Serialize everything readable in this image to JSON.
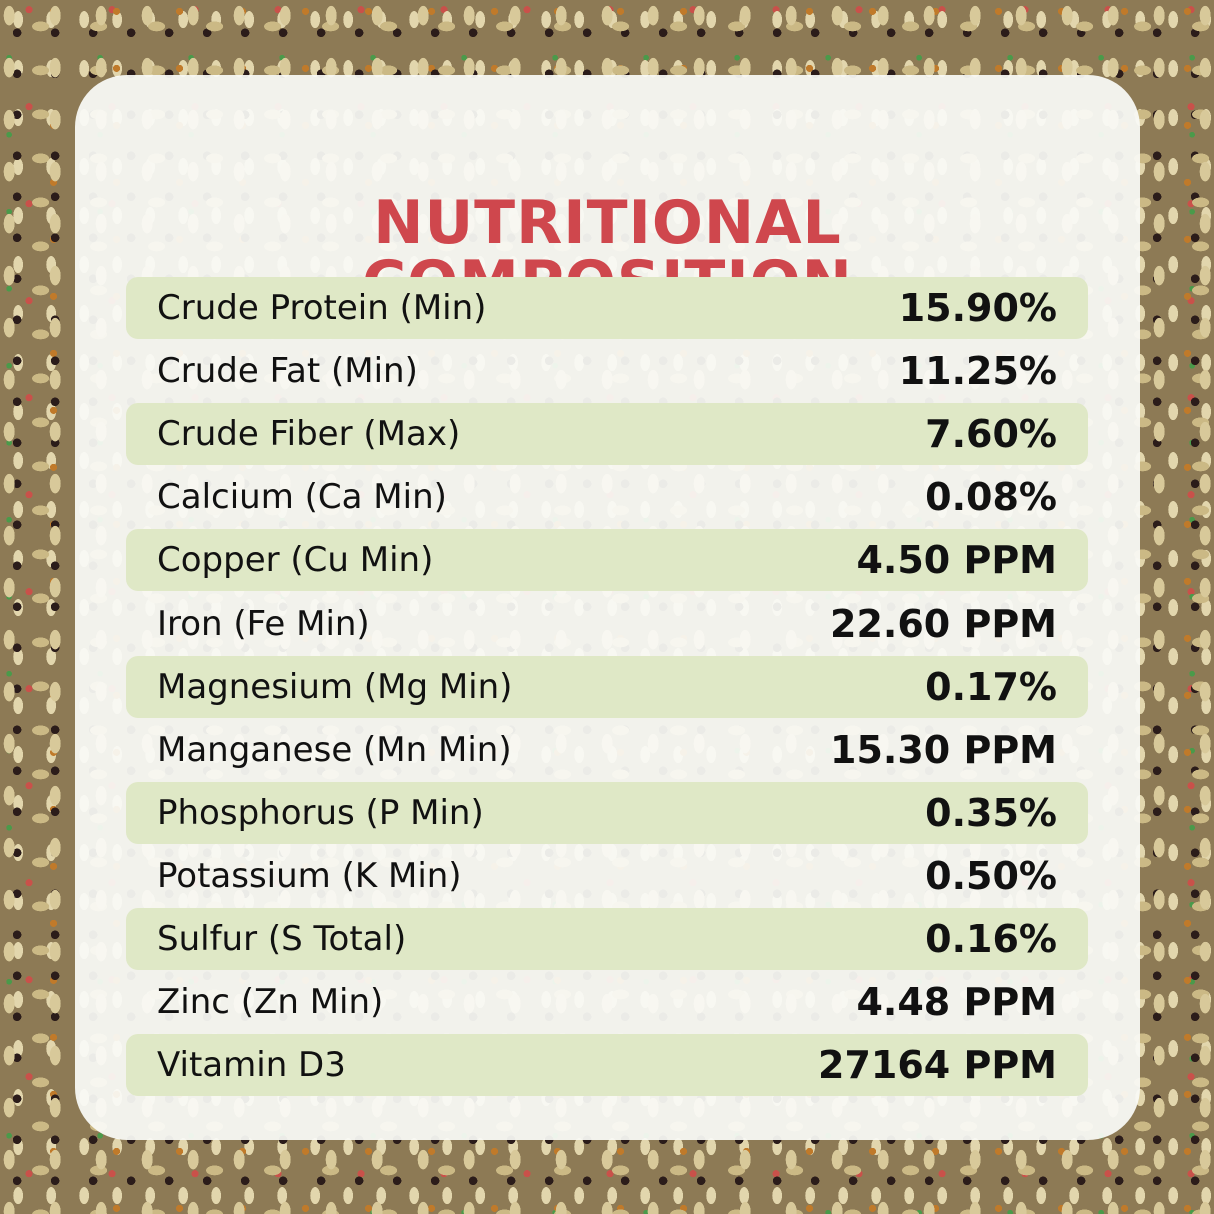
{
  "header": {
    "title_lines": [
      "NUTRITIONAL",
      "COMPOSITION"
    ]
  },
  "table": {
    "rows": [
      [
        "Crude Protein (Min)",
        "15.90%"
      ],
      [
        "Crude Fat (Min)",
        "11.25%"
      ],
      [
        "Crude Fiber (Max)",
        "7.60%"
      ],
      [
        "Calcium (Ca Min)",
        "0.08%"
      ],
      [
        "Copper (Cu Min)",
        "4.50 PPM"
      ],
      [
        "Iron (Fe Min)",
        "22.60 PPM"
      ],
      [
        "Magnesium (Mg Min)",
        "0.17%"
      ],
      [
        "Manganese (Mn Min)",
        "15.30 PPM"
      ],
      [
        "Phosphorus (P Min)",
        "0.35%"
      ],
      [
        "Potassium (K Min)",
        "0.50%"
      ],
      [
        "Sulfur (S Total)",
        "0.16%"
      ],
      [
        "Zinc (Zn Min)",
        "4.48 PPM"
      ],
      [
        "Vitamin D3",
        "27164 PPM"
      ]
    ]
  }
}
